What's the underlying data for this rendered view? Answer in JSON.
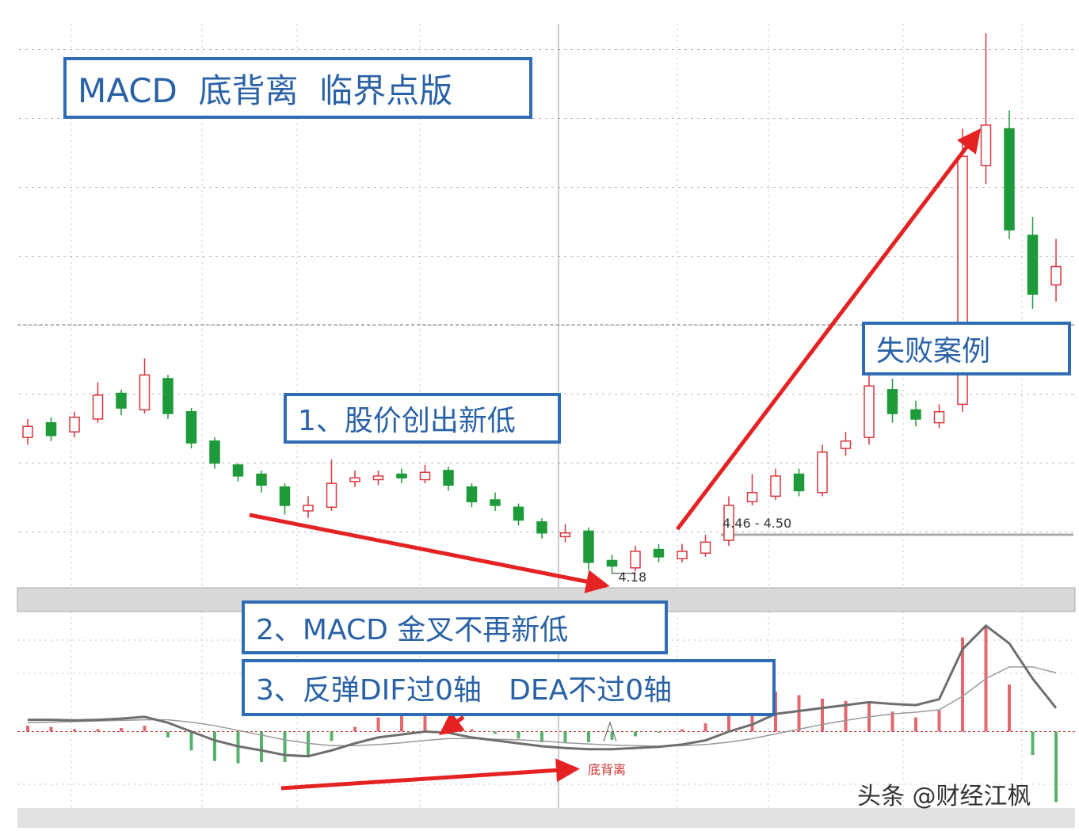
{
  "chart_data": {
    "type": "candlestick",
    "title": "MACD  底背离  临界点版",
    "annotations": [
      "1、股价创出新低",
      "2、MACD 金叉不再新低",
      "3、反弹DIF过0轴   DEA不过0轴",
      "失败案例"
    ],
    "low_label": 4.18,
    "range_label": "4.46 - 4.50",
    "divergence_label": "底背离",
    "watermark": "头条 @财经江枫",
    "up_color": "#d9363e",
    "down_color": "#1f9a3a",
    "ylim": [
      4.11,
      7.15
    ],
    "open": [
      4.92,
      5.0,
      4.95,
      5.02,
      5.16,
      5.07,
      5.24,
      5.06,
      4.9,
      4.77,
      4.72,
      4.65,
      4.52,
      4.54,
      4.68,
      4.69,
      4.72,
      4.69,
      4.74,
      4.65,
      4.58,
      4.54,
      4.46,
      4.38,
      4.41,
      4.25,
      4.21,
      4.31,
      4.26,
      4.29,
      4.36,
      4.57,
      4.6,
      4.72,
      4.62,
      4.86,
      4.92,
      5.18,
      5.07,
      5.0,
      5.1,
      6.4,
      6.6,
      6.02,
      5.75
    ],
    "high": [
      5.02,
      5.03,
      5.06,
      5.22,
      5.18,
      5.35,
      5.26,
      5.08,
      4.92,
      4.78,
      4.74,
      4.67,
      4.6,
      4.8,
      4.74,
      4.74,
      4.75,
      4.77,
      4.76,
      4.67,
      4.62,
      4.56,
      4.48,
      4.45,
      4.43,
      4.28,
      4.33,
      4.34,
      4.34,
      4.39,
      4.6,
      4.72,
      4.75,
      4.75,
      4.88,
      4.95,
      5.4,
      5.24,
      5.12,
      5.1,
      6.6,
      7.12,
      6.7,
      6.12,
      6.0
    ],
    "low": [
      4.88,
      4.9,
      4.92,
      5.0,
      5.04,
      5.05,
      5.02,
      4.86,
      4.75,
      4.68,
      4.62,
      4.5,
      4.48,
      4.52,
      4.65,
      4.66,
      4.67,
      4.67,
      4.63,
      4.54,
      4.52,
      4.44,
      4.37,
      4.35,
      4.2,
      4.18,
      4.19,
      4.24,
      4.24,
      4.27,
      4.33,
      4.55,
      4.58,
      4.6,
      4.6,
      4.82,
      4.88,
      5.0,
      4.98,
      4.97,
      5.06,
      6.3,
      6.0,
      5.62,
      5.66
    ],
    "close": [
      4.98,
      4.93,
      5.03,
      5.15,
      5.08,
      5.26,
      5.05,
      4.89,
      4.78,
      4.71,
      4.66,
      4.55,
      4.55,
      4.67,
      4.7,
      4.71,
      4.7,
      4.73,
      4.66,
      4.57,
      4.55,
      4.47,
      4.4,
      4.4,
      4.24,
      4.22,
      4.3,
      4.27,
      4.3,
      4.35,
      4.55,
      4.62,
      4.71,
      4.63,
      4.84,
      4.9,
      5.2,
      5.05,
      5.02,
      5.06,
      6.45,
      6.62,
      6.05,
      5.7,
      5.85
    ],
    "macd": {
      "ylim": [
        -0.13,
        0.2
      ],
      "dif_color": "#6e6e6e",
      "dea_color": "#9a9a9a",
      "dif": [
        0.02,
        0.02,
        0.019,
        0.02,
        0.022,
        0.025,
        0.015,
        0.0,
        -0.015,
        -0.025,
        -0.032,
        -0.04,
        -0.042,
        -0.032,
        -0.02,
        -0.01,
        -0.005,
        0.0,
        -0.002,
        -0.01,
        -0.015,
        -0.02,
        -0.025,
        -0.028,
        -0.03,
        -0.03,
        -0.028,
        -0.026,
        -0.022,
        -0.015,
        0.0,
        0.012,
        0.03,
        0.035,
        0.04,
        0.045,
        0.05,
        0.047,
        0.045,
        0.055,
        0.14,
        0.18,
        0.15,
        0.09,
        0.04
      ],
      "dea": [
        0.015,
        0.016,
        0.017,
        0.018,
        0.019,
        0.02,
        0.02,
        0.016,
        0.01,
        0.002,
        -0.006,
        -0.014,
        -0.02,
        -0.024,
        -0.024,
        -0.022,
        -0.019,
        -0.015,
        -0.012,
        -0.012,
        -0.013,
        -0.014,
        -0.016,
        -0.019,
        -0.021,
        -0.023,
        -0.024,
        -0.025,
        -0.024,
        -0.022,
        -0.018,
        -0.012,
        -0.004,
        0.004,
        0.012,
        0.019,
        0.025,
        0.03,
        0.033,
        0.037,
        0.06,
        0.09,
        0.11,
        0.11,
        0.1
      ],
      "hist": [
        0.01,
        0.008,
        0.004,
        0.004,
        0.006,
        0.01,
        -0.01,
        -0.032,
        -0.05,
        -0.054,
        -0.052,
        -0.052,
        -0.044,
        -0.016,
        0.008,
        0.024,
        0.028,
        0.03,
        0.02,
        0.004,
        -0.004,
        -0.012,
        -0.018,
        -0.018,
        -0.018,
        -0.014,
        -0.008,
        -0.002,
        0.004,
        0.014,
        0.036,
        0.048,
        0.068,
        0.062,
        0.056,
        0.052,
        0.05,
        0.034,
        0.024,
        0.036,
        0.16,
        0.18,
        0.08,
        -0.04,
        -0.12
      ]
    }
  }
}
